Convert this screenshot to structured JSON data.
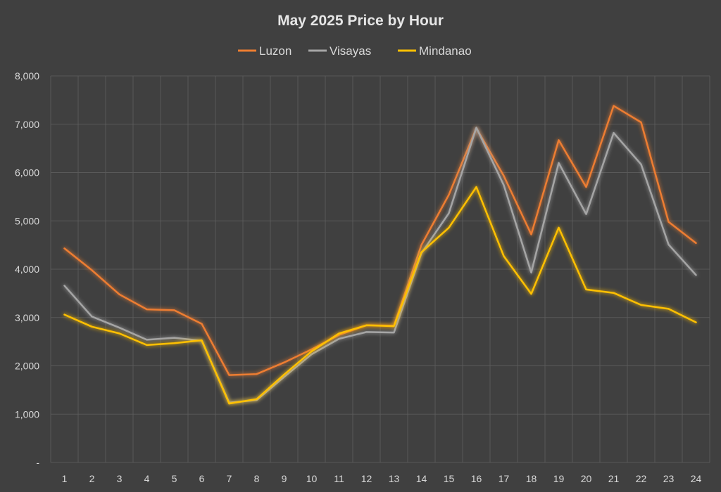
{
  "chart_data": {
    "type": "line",
    "title": "May 2025 Price by Hour",
    "xlabel": "",
    "ylabel": "",
    "categories": [
      "1",
      "2",
      "3",
      "4",
      "5",
      "6",
      "7",
      "8",
      "9",
      "10",
      "11",
      "12",
      "13",
      "14",
      "15",
      "16",
      "17",
      "18",
      "19",
      "20",
      "21",
      "22",
      "23",
      "24"
    ],
    "ylim": [
      0,
      8000
    ],
    "yticks": [
      0,
      1000,
      2000,
      3000,
      4000,
      5000,
      6000,
      7000,
      8000
    ],
    "ytick_labels": [
      "-",
      "1,000",
      "2,000",
      "3,000",
      "4,000",
      "5,000",
      "6,000",
      "7,000",
      "8,000"
    ],
    "grid": true,
    "legend_position": "top",
    "series": [
      {
        "name": "Luzon",
        "color": "#ED7D31",
        "values": [
          4430,
          3980,
          3480,
          3170,
          3150,
          2870,
          1810,
          1830,
          2070,
          2340,
          2640,
          2840,
          2830,
          4500,
          5540,
          6920,
          5930,
          4720,
          6670,
          5700,
          7380,
          7040,
          4980,
          4540
        ]
      },
      {
        "name": "Visayas",
        "color": "#A5A5A5",
        "values": [
          3660,
          3020,
          2790,
          2540,
          2580,
          2520,
          1240,
          1290,
          1770,
          2240,
          2560,
          2700,
          2690,
          4330,
          5160,
          6930,
          5740,
          3930,
          6200,
          5140,
          6820,
          6170,
          4510,
          3880
        ]
      },
      {
        "name": "Mindanao",
        "color": "#FFC000",
        "values": [
          3060,
          2810,
          2670,
          2430,
          2470,
          2530,
          1220,
          1310,
          1820,
          2300,
          2670,
          2840,
          2820,
          4350,
          4860,
          5700,
          4270,
          3490,
          4860,
          3580,
          3510,
          3260,
          3180,
          2900
        ]
      }
    ]
  }
}
